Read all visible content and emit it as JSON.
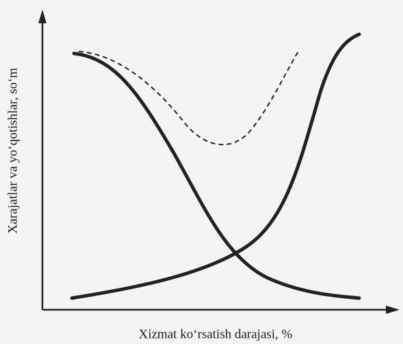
{
  "axes": {
    "y_label": "Xarajatlar va yo‘qotishlar, so‘m",
    "x_label": "Xizmat ko‘rsatish darajasi, %"
  }
}
